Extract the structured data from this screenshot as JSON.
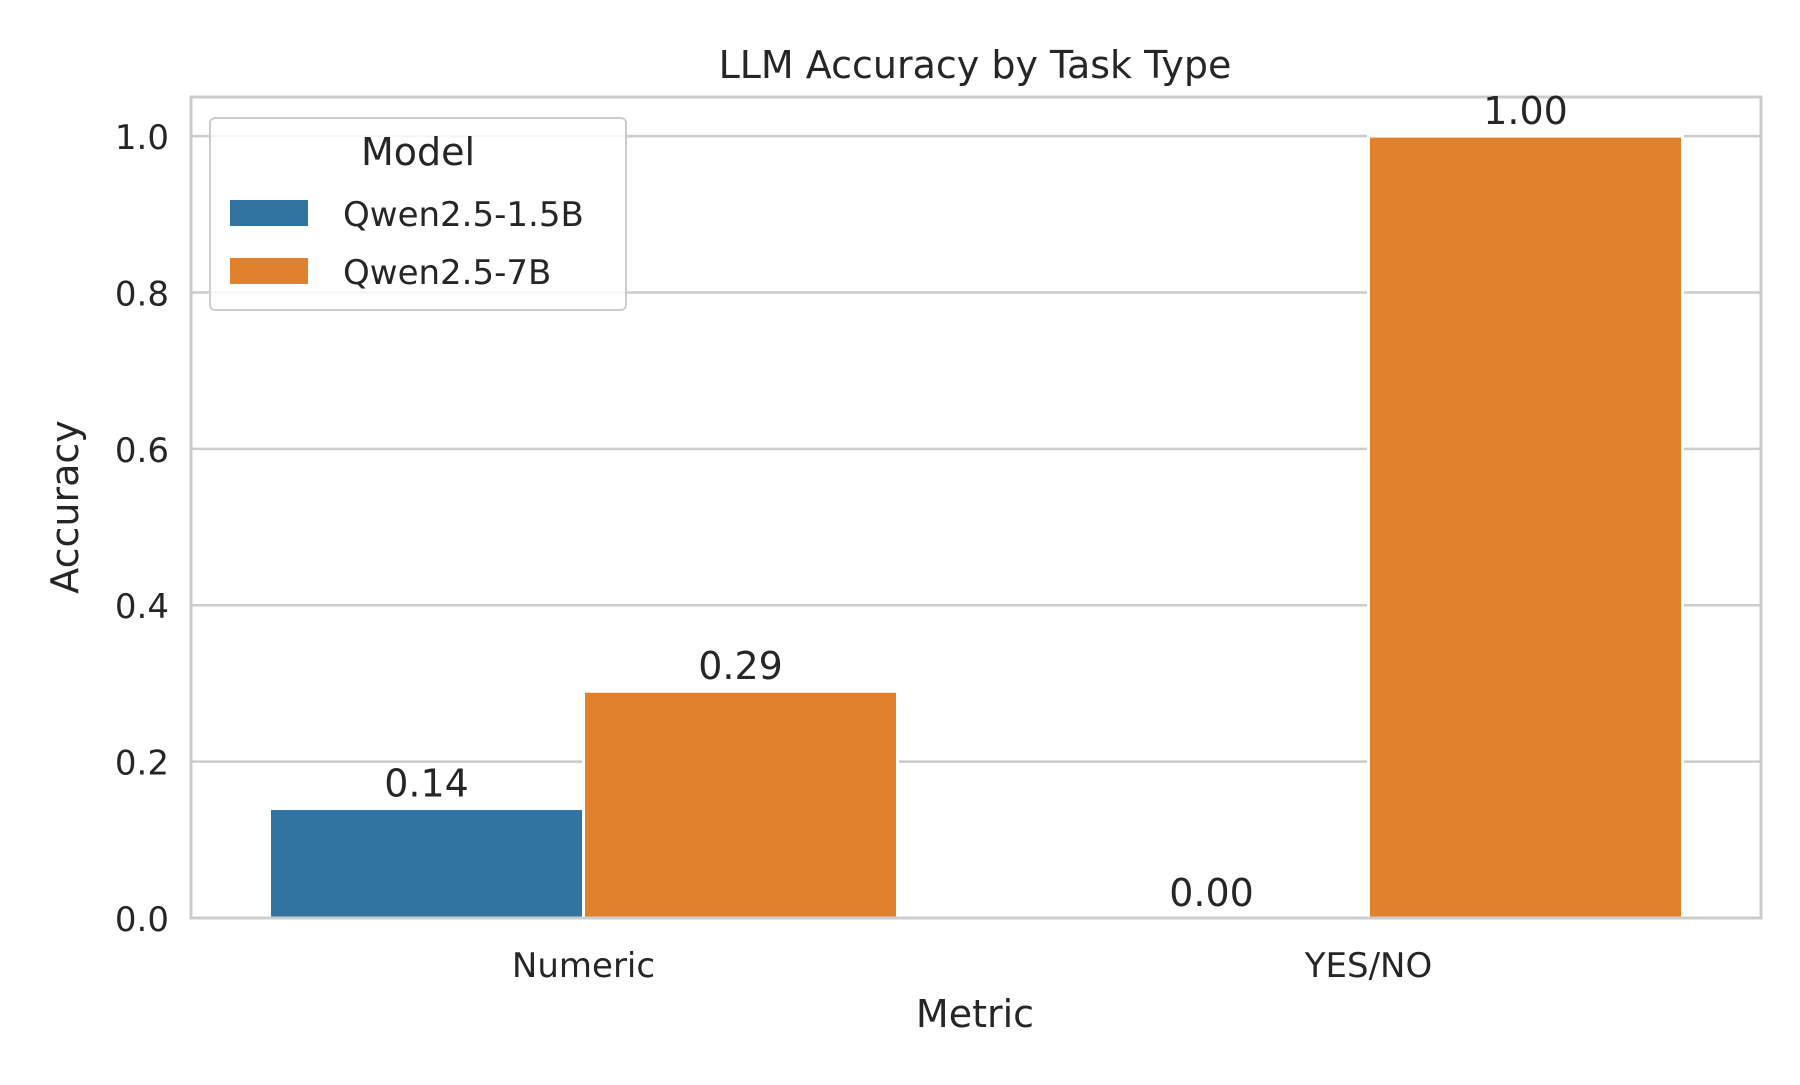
{
  "chart_data": {
    "type": "bar",
    "title": "LLM Accuracy by Task Type",
    "xlabel": "Metric",
    "ylabel": "Accuracy",
    "categories": [
      "Numeric",
      "YES/NO"
    ],
    "series": [
      {
        "name": "Qwen2.5-1.5B",
        "values": [
          0.14,
          0.0
        ],
        "color": "#3274a1"
      },
      {
        "name": "Qwen2.5-7B",
        "values": [
          0.29,
          1.0
        ],
        "color": "#e1812c"
      }
    ],
    "data_labels": [
      [
        "0.14",
        "0.00"
      ],
      [
        "0.29",
        "1.00"
      ]
    ],
    "ylim": [
      0,
      1.05
    ],
    "yticks": [
      "0.0",
      "0.2",
      "0.4",
      "0.6",
      "0.8",
      "1.0"
    ],
    "ytick_values": [
      0,
      0.2,
      0.4,
      0.6,
      0.8,
      1.0
    ],
    "grid": true,
    "legend": {
      "title": "Model",
      "placement": "top-left"
    }
  }
}
